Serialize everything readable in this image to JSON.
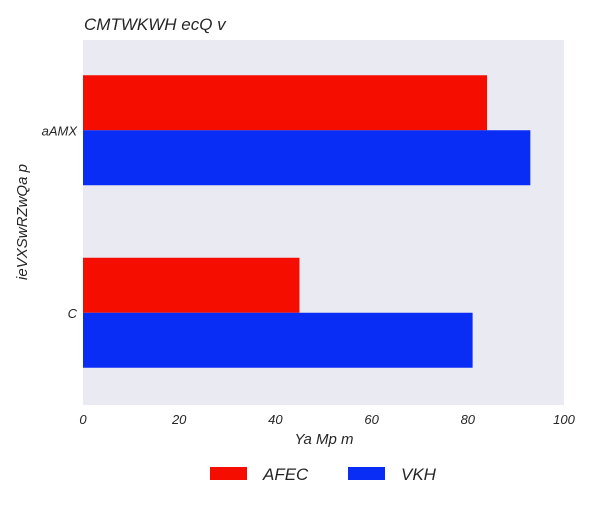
{
  "chart_data": {
    "type": "bar",
    "orientation": "horizontal",
    "title": "CMTWKWH ecQ v",
    "xlabel": "Ya Mp m",
    "ylabel": "ieVXSwRZwQa p",
    "categories": [
      "aAMX",
      "C"
    ],
    "series": [
      {
        "name": "AFEC",
        "values": [
          84,
          45
        ],
        "color": "#f50d00"
      },
      {
        "name": "VKH",
        "values": [
          93,
          81
        ],
        "color": "#0a2df5"
      }
    ],
    "xlim": [
      0,
      100
    ],
    "xticks": [
      "0",
      "20",
      "40",
      "60",
      "80",
      "100"
    ],
    "grid": false,
    "background": "#eaeaf2",
    "legend_position": "bottom-center"
  }
}
